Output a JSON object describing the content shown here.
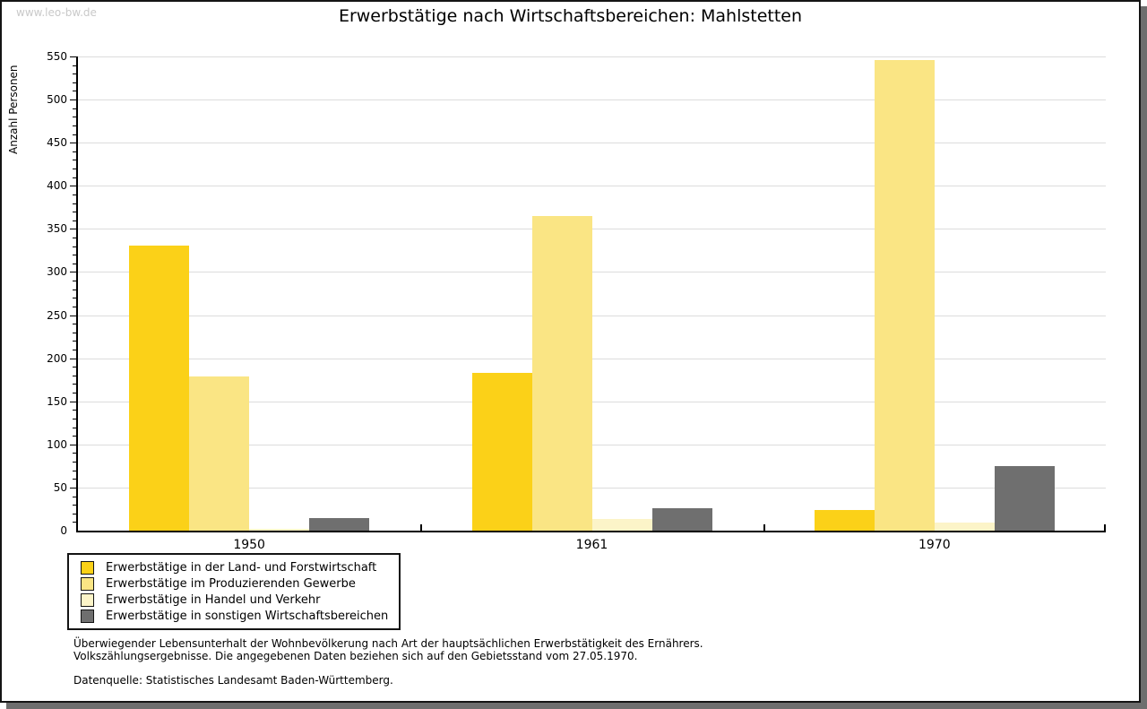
{
  "watermark": "www.leo-bw.de",
  "title": "Erwerbstätige nach Wirtschaftsbereichen: Mahlstetten",
  "y_axis_title": "Anzahl Personen",
  "chart_data": {
    "type": "bar",
    "title": "Erwerbstätige nach Wirtschaftsbereichen: Mahlstetten",
    "xlabel": "",
    "ylabel": "Anzahl Personen",
    "categories": [
      "1950",
      "1961",
      "1970"
    ],
    "series": [
      {
        "name": "Erwerbstätige in der Land- und Forstwirtschaft",
        "color": "#fbd118",
        "values": [
          331,
          183,
          24
        ]
      },
      {
        "name": "Erwerbstätige im Produzierenden Gewerbe",
        "color": "#fae584",
        "values": [
          179,
          365,
          546
        ]
      },
      {
        "name": "Erwerbstätige in Handel und Verkehr",
        "color": "#fcf4c8",
        "values": [
          2,
          14,
          9
        ]
      },
      {
        "name": "Erwerbstätige in sonstigen Wirtschaftsbereichen",
        "color": "#6f6f6f",
        "values": [
          15,
          26,
          75
        ]
      }
    ],
    "ylim": [
      0,
      550
    ],
    "ytick_step": 50,
    "ytick_minor_step": 10,
    "grid": true,
    "gridline_color": "#dcdcdc",
    "legend_position": "bottom-left"
  },
  "footnotes": {
    "line1": "Überwiegender Lebensunterhalt der Wohnbevölkerung nach Art der hauptsächlichen Erwerbstätigkeit des Ernährers.",
    "line2": "Volkszählungsergebnisse. Die angegebenen Daten beziehen sich auf den Gebietsstand vom 27.05.1970.",
    "source": "Datenquelle: Statistisches Landesamt Baden-Württemberg."
  }
}
